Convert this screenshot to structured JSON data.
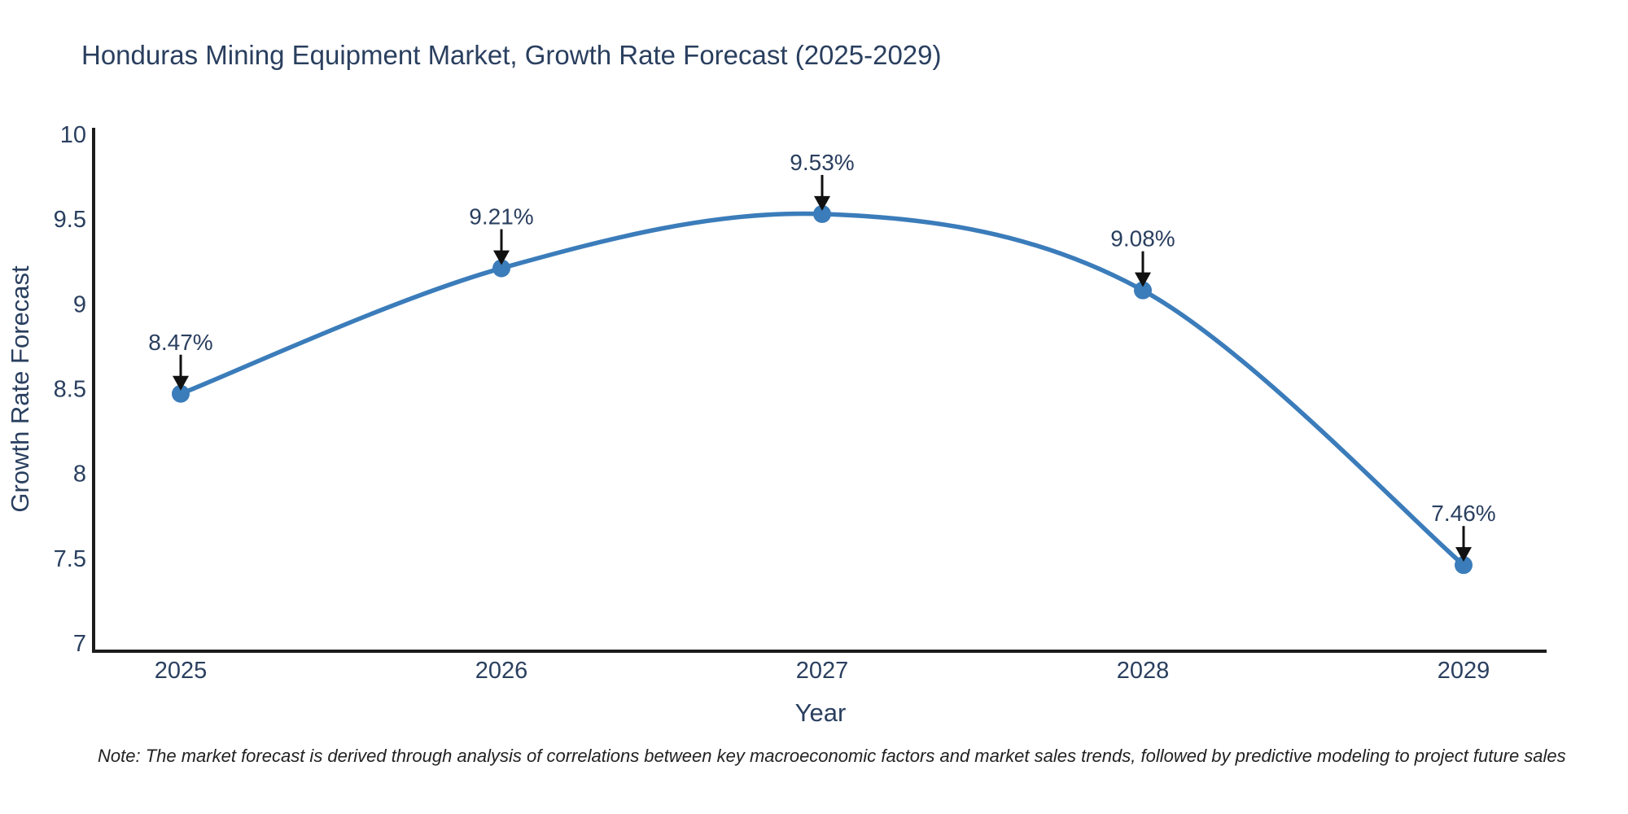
{
  "chart_data": {
    "type": "line",
    "title": "Honduras Mining Equipment Market, Growth Rate Forecast (2025-2029)",
    "xlabel": "Year",
    "ylabel": "Growth Rate Forecast",
    "categories": [
      "2025",
      "2026",
      "2027",
      "2028",
      "2029"
    ],
    "series": [
      {
        "name": "Growth Rate Forecast",
        "values": [
          8.47,
          9.21,
          9.53,
          9.08,
          7.46
        ],
        "point_labels": [
          "8.47%",
          "9.21%",
          "9.53%",
          "9.08%",
          "7.46%"
        ]
      }
    ],
    "ylim": [
      7,
      10
    ],
    "yticks": [
      {
        "value": 7,
        "label": "7"
      },
      {
        "value": 7.5,
        "label": "7.5"
      },
      {
        "value": 8,
        "label": "8"
      },
      {
        "value": 8.5,
        "label": "8.5"
      },
      {
        "value": 9,
        "label": "9"
      },
      {
        "value": 9.5,
        "label": "9.5"
      },
      {
        "value": 10,
        "label": "10"
      }
    ],
    "grid": false,
    "legend_position": "none",
    "line_shape": "spline",
    "line_color": "#3b7cba",
    "marker_color": "#3b7cba",
    "annotation_color": "#111111",
    "axis_color": "#1c1c1c",
    "text_color": "#2a3f5f",
    "note": "Note: The market forecast is derived through analysis of correlations between key macroeconomic factors and market sales trends, followed by predictive modeling to project future sales"
  }
}
